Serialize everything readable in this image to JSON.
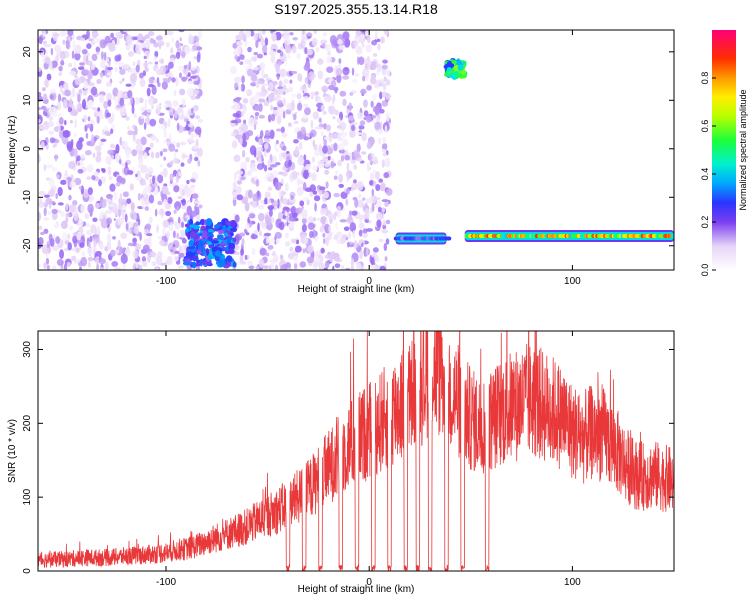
{
  "title": "S197.2025.355.13.14.R18",
  "chart_data": [
    {
      "type": "heatmap",
      "name": "spectrogram",
      "xlabel": "Height of straight line (km)",
      "ylabel": "Frequency (Hz)",
      "xlim": [
        -163,
        150
      ],
      "ylim": [
        -25,
        24.5
      ],
      "xticks": [
        -100,
        0,
        100
      ],
      "yticks": [
        -20,
        -10,
        0,
        10,
        20
      ],
      "colorbar": {
        "label": "Normalized spectral amplitude",
        "range": [
          0,
          1
        ],
        "ticks": [
          "0.0",
          "0.2",
          "0.4",
          "0.6",
          "0.8"
        ],
        "tick_values": [
          0,
          0.2,
          0.4,
          0.6,
          0.8
        ]
      },
      "features": [
        {
          "label": "noise floor",
          "x_range": [
            -163,
            -83
          ],
          "freq_range": [
            -25,
            24.5
          ],
          "amplitude": 0.1
        },
        {
          "label": "noise floor",
          "x_range": [
            -67,
            10
          ],
          "freq_range": [
            -25,
            24.5
          ],
          "amplitude": 0.1
        },
        {
          "label": "low-frequency burst",
          "x_range": [
            -90,
            -66
          ],
          "freq_range": [
            -24,
            -15
          ],
          "amplitude": 0.28
        },
        {
          "label": "carrier tone",
          "x_range": [
            13,
            38
          ],
          "freq_center": -18.5,
          "amplitude": 0.35
        },
        {
          "label": "high-frequency tone",
          "x_range": [
            38,
            47
          ],
          "freq_range": [
            15,
            18
          ],
          "amplitude": 0.45
        },
        {
          "label": "carrier tone",
          "x_range": [
            47,
            150
          ],
          "freq_center": -18,
          "amplitude": 0.9
        }
      ]
    },
    {
      "type": "line",
      "name": "snr",
      "xlabel": "Height of straight line (km)",
      "ylabel": "SNR (10 * v/v)",
      "xlim": [
        -163,
        150
      ],
      "ylim": [
        0,
        325
      ],
      "xticks": [
        -100,
        0,
        100
      ],
      "yticks": [
        0,
        100,
        200,
        300
      ],
      "color": "#e8383a",
      "series": [
        {
          "name": "SNR",
          "x": [
            -163,
            -150,
            -140,
            -130,
            -120,
            -110,
            -100,
            -95,
            -90,
            -85,
            -80,
            -75,
            -70,
            -65,
            -60,
            -55,
            -50,
            -45,
            -40,
            -35,
            -30,
            -25,
            -20,
            -15,
            -10,
            -5,
            0,
            5,
            10,
            15,
            20,
            25,
            30,
            35,
            40,
            45,
            50,
            55,
            60,
            65,
            70,
            75,
            80,
            85,
            90,
            95,
            100,
            105,
            110,
            115,
            120,
            125,
            130,
            135,
            140,
            145,
            150
          ],
          "values": [
            15,
            16,
            18,
            18,
            20,
            22,
            25,
            28,
            30,
            34,
            40,
            45,
            50,
            55,
            60,
            68,
            75,
            82,
            90,
            100,
            110,
            125,
            140,
            155,
            170,
            180,
            190,
            200,
            212,
            225,
            235,
            250,
            280,
            270,
            245,
            225,
            205,
            195,
            205,
            215,
            222,
            228,
            232,
            225,
            218,
            208,
            190,
            180,
            188,
            185,
            170,
            150,
            132,
            128,
            130,
            126,
            122
          ],
          "dropouts_to_zero": [
            -40,
            -32,
            -24,
            -14,
            -6,
            2,
            10,
            18,
            24,
            30,
            38,
            46,
            58
          ]
        }
      ]
    }
  ]
}
